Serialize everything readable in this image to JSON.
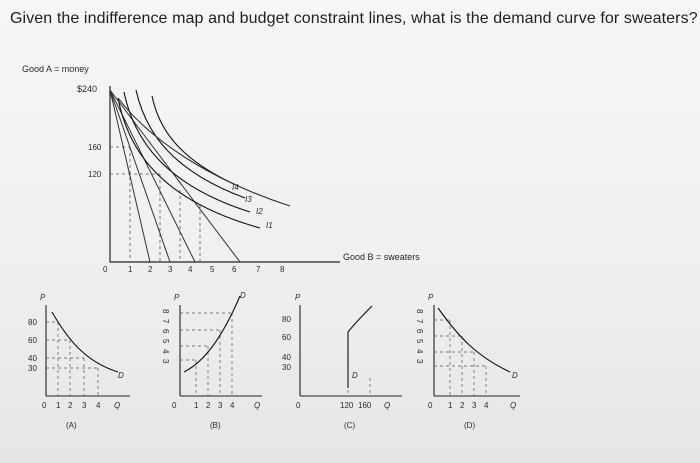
{
  "question": "Given the indifference map and budget constraint lines, what is the demand curve for sweaters?",
  "main_graph": {
    "y_axis_label": "Good A = money",
    "y_top_value": "$240",
    "y_ticks": [
      "160",
      "120"
    ],
    "x_origin": "0",
    "x_ticks": [
      "1",
      "2",
      "3",
      "4",
      "5",
      "6",
      "7",
      "8"
    ],
    "x_axis_label": "Good B = sweaters",
    "curve_labels": [
      "I4",
      "I3",
      "I2",
      "I1"
    ]
  },
  "options": [
    {
      "letter": "(A)",
      "p_label": "P",
      "q_label": "Q",
      "origin": "0",
      "y_ticks": [
        "80",
        "60",
        "40",
        "30"
      ],
      "x_ticks": [
        "1",
        "2",
        "3",
        "4"
      ],
      "curve_label": "D"
    },
    {
      "letter": "(B)",
      "p_label": "P",
      "q_label": "Q",
      "origin": "0",
      "y_ticks": [
        "8",
        "7",
        "6",
        "5",
        "4",
        "3"
      ],
      "x_ticks": [
        "1",
        "2",
        "3",
        "4"
      ],
      "curve_label": "D"
    },
    {
      "letter": "(C)",
      "p_label": "P",
      "q_label": "Q",
      "origin": "0",
      "y_ticks": [
        "80",
        "60",
        "40",
        "30"
      ],
      "x_ticks": [
        "120",
        "160"
      ],
      "curve_label": "D"
    },
    {
      "letter": "(D)",
      "p_label": "P",
      "q_label": "Q",
      "origin": "0",
      "y_ticks": [
        "8",
        "7",
        "6",
        "5",
        "4",
        "3"
      ],
      "x_ticks": [
        "1",
        "2",
        "3",
        "4"
      ],
      "curve_label": "D"
    }
  ]
}
